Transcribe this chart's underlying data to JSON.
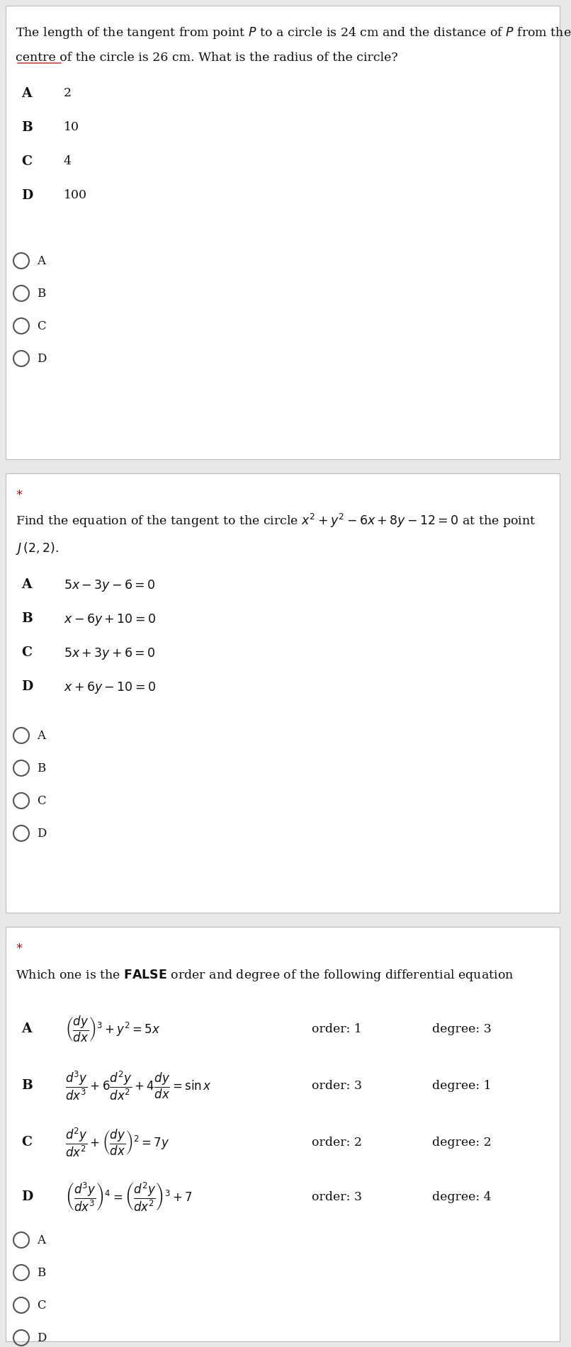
{
  "bg_color": "#e8e8e8",
  "panel_color": "#ffffff",
  "text_color": "#111111",
  "panel1": {
    "q_line1": "The length of the tangent from point $P$ to a circle is 24 cm and the distance of $P$ from the",
    "q_line2": "centre of the circle is 26 cm. What is the radius of the circle?",
    "opts": [
      [
        "A",
        "2"
      ],
      [
        "B",
        "10"
      ],
      [
        "C",
        "4"
      ],
      [
        "D",
        "100"
      ]
    ]
  },
  "panel2": {
    "q_line1": "Find the equation of the tangent to the circle $x^2+y^2-6x+8y-12=0$ at the point",
    "q_line2": "$J\\,(2,2)$.",
    "opts": [
      [
        "A",
        "$5x-3y-6=0$"
      ],
      [
        "B",
        "$x-6y+10=0$"
      ],
      [
        "C",
        "$5x+3y+6=0$"
      ],
      [
        "D",
        "$x+6y-10=0$"
      ]
    ]
  },
  "panel3": {
    "q_line1": "Which one is the $\\mathbf{FALSE}$ order and degree of the following differential equation",
    "diff_opts": [
      [
        "A",
        "$\\left(\\dfrac{dy}{dx}\\right)^3+y^2=5x$",
        "order: 1",
        "degree: 3"
      ],
      [
        "B",
        "$\\dfrac{d^3y}{dx^3}+6\\dfrac{d^2y}{dx^2}+4\\dfrac{dy}{dx}=\\sin x$",
        "order: 3",
        "degree: 1"
      ],
      [
        "C",
        "$\\dfrac{d^2y}{dx^2}+\\left(\\dfrac{dy}{dx}\\right)^2=7y$",
        "order: 2",
        "degree: 2"
      ],
      [
        "D",
        "$\\left(\\dfrac{d^3y}{dx^3}\\right)^4=\\left(\\dfrac{d^2y}{dx^2}\\right)^3+7$",
        "order: 3",
        "degree: 4"
      ]
    ]
  }
}
